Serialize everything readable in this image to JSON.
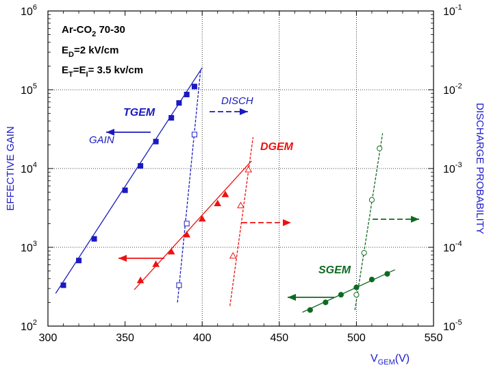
{
  "chart_data": {
    "type": "scatter",
    "title": "",
    "xlabel_main": "V",
    "xlabel_sub": "GEM",
    "xlabel_tail": "(V)",
    "ylabel_left": "EFFECTIVE GAIN",
    "ylabel_right": "DISCHARGE PROBABILITY",
    "xlim": [
      300,
      550
    ],
    "ylim_left": [
      100,
      1000000
    ],
    "ylim_right": [
      1e-05,
      0.1
    ],
    "yscale": "log",
    "grid": "dotted at 10^3, 10^4, 10^5 and x = 400, 450, 500",
    "x_ticks": [
      "300",
      "350",
      "400",
      "450",
      "500",
      "550"
    ],
    "y_ticks_left": [
      {
        "base": "10",
        "exp": "2",
        "value": 100
      },
      {
        "base": "10",
        "exp": "3",
        "value": 1000
      },
      {
        "base": "10",
        "exp": "4",
        "value": 10000
      },
      {
        "base": "10",
        "exp": "5",
        "value": 100000
      },
      {
        "base": "10",
        "exp": "6",
        "value": 1000000
      }
    ],
    "y_ticks_right": [
      {
        "base": "10",
        "exp": "-5",
        "value": 1e-05
      },
      {
        "base": "10",
        "exp": "-4",
        "value": 0.0001
      },
      {
        "base": "10",
        "exp": "-3",
        "value": 0.001
      },
      {
        "base": "10",
        "exp": "-2",
        "value": 0.01
      },
      {
        "base": "10",
        "exp": "-1",
        "value": 0.1
      }
    ],
    "annotation": {
      "line1_a": "Ar-CO",
      "line1_sub": "2",
      "line1_b": " 70-30",
      "line2_a": "E",
      "line2_sub": "D",
      "line2_b": "=2 kV/cm",
      "line3_a": "E",
      "line3_sub1": "T",
      "line3_b": "=E",
      "line3_sub2": "I",
      "line3_c": "= 3.5 kv/cm"
    },
    "arrow_labels": {
      "gain": "GAIN",
      "disch": "DISCH"
    },
    "series": [
      {
        "name": "TGEM",
        "color": "#1a1ac0",
        "axis": "left",
        "marker": "square-filled",
        "x": [
          310,
          320,
          330,
          350,
          360,
          370,
          380,
          385,
          390,
          395
        ],
        "y": [
          330,
          680,
          1280,
          5300,
          10800,
          22000,
          44000,
          68000,
          87000,
          110000
        ],
        "fit": {
          "x": [
            305,
            400
          ],
          "y": [
            260,
            190000
          ]
        }
      },
      {
        "name": "TGEM discharge",
        "color": "#1a1ac0",
        "axis": "right",
        "marker": "square-open",
        "x": [
          385,
          390,
          395
        ],
        "y": [
          3.3e-05,
          0.0002,
          0.0027
        ],
        "fit": {
          "x": [
            384,
            399
          ],
          "y": [
            2e-05,
            0.018
          ]
        }
      },
      {
        "name": "DGEM",
        "color": "#ee1111",
        "axis": "left",
        "marker": "triangle-filled",
        "x": [
          360,
          370,
          380,
          390,
          400,
          410,
          415
        ],
        "y": [
          380,
          610,
          880,
          1450,
          2300,
          3600,
          4700
        ],
        "fit": {
          "x": [
            356,
            432
          ],
          "y": [
            290,
            12500
          ]
        }
      },
      {
        "name": "DGEM discharge",
        "color": "#ee1111",
        "axis": "right",
        "marker": "triangle-open",
        "x": [
          420,
          425,
          430
        ],
        "y": [
          7.8e-05,
          0.00034,
          0.00097
        ],
        "fit": {
          "x": [
            418,
            433
          ],
          "y": [
            1.8e-05,
            0.0025
          ]
        }
      },
      {
        "name": "SGEM",
        "color": "#0e6a20",
        "axis": "left",
        "marker": "circle-filled",
        "x": [
          470,
          480,
          490,
          500,
          510,
          520
        ],
        "y": [
          160,
          200,
          250,
          310,
          390,
          460
        ],
        "fit": {
          "x": [
            465,
            525
          ],
          "y": [
            150,
            520
          ]
        }
      },
      {
        "name": "SGEM discharge",
        "color": "#0e6a20",
        "axis": "right",
        "marker": "circle-open",
        "x": [
          500,
          505,
          510,
          515
        ],
        "y": [
          2.5e-05,
          8.5e-05,
          0.0004,
          0.0018
        ],
        "fit": {
          "x": [
            499,
            517
          ],
          "y": [
            1.6e-05,
            0.0028
          ]
        }
      }
    ]
  }
}
